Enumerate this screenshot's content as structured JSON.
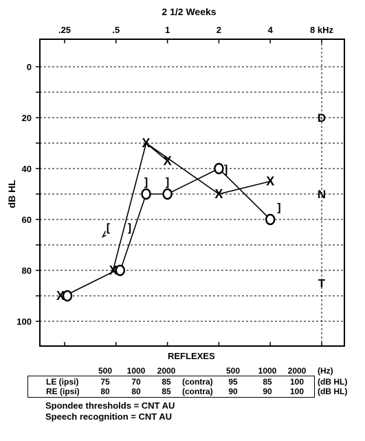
{
  "chart_data": {
    "type": "scatter",
    "title": "2 1/2 Weeks",
    "x_ticks": [
      ".25",
      ".5",
      "1",
      "2",
      "4",
      "8 kHz"
    ],
    "x_freqs_khz": [
      0.25,
      0.5,
      1,
      2,
      4,
      8
    ],
    "x_scale": "log",
    "xlabel": "",
    "ylabel": "dB HL",
    "y_ticks": [
      "0",
      "20",
      "40",
      "60",
      "80",
      "100"
    ],
    "ylim": [
      110,
      -10
    ],
    "y_inverted": true,
    "grid": "dashed horizontal every 10 dB, dashed vertical at 8 kHz",
    "series": [
      {
        "symbol": "X",
        "points": [
          [
            0.25,
            90
          ],
          [
            0.5,
            80
          ],
          [
            0.75,
            30
          ],
          [
            1,
            37
          ],
          [
            2,
            50
          ],
          [
            4,
            45
          ]
        ]
      },
      {
        "symbol": "O",
        "points": [
          [
            0.25,
            90
          ],
          [
            0.5,
            80
          ],
          [
            0.75,
            50
          ],
          [
            1,
            50
          ],
          [
            2,
            40
          ],
          [
            4,
            60
          ]
        ]
      },
      {
        "symbol": "]",
        "points": [
          [
            0.75,
            45
          ],
          [
            1,
            45
          ],
          [
            2.2,
            40
          ],
          [
            4.5,
            55
          ],
          [
            0.6,
            63
          ]
        ]
      },
      {
        "symbol": "[",
        "points": [
          [
            0.45,
            63
          ]
        ]
      }
    ],
    "lines": [
      {
        "from": "X@0.25",
        "path": [
          [
            0.25,
            90
          ],
          [
            0.5,
            80
          ],
          [
            0.5,
            80
          ],
          [
            0.75,
            30
          ],
          [
            2,
            50
          ],
          [
            4,
            45
          ]
        ]
      },
      {
        "from": "O@0.25",
        "path": [
          [
            0.25,
            90
          ],
          [
            0.5,
            80
          ],
          [
            0.75,
            50
          ],
          [
            1,
            50
          ],
          [
            2,
            40
          ],
          [
            4,
            60
          ]
        ]
      }
    ],
    "side_labels": [
      "D",
      "N",
      "T"
    ],
    "reflexes": {
      "title": "REFLEXES",
      "freq_headers": [
        "500",
        "1000",
        "2000"
      ],
      "unit_hz": "(Hz)",
      "rows": [
        {
          "label": "LE (ipsi)",
          "ipsi": [
            "75",
            "70",
            "85"
          ],
          "mode": "(contra)",
          "contra": [
            "95",
            "85",
            "100"
          ],
          "unit": "(dB HL)"
        },
        {
          "label": "RE (ipsi)",
          "ipsi": [
            "80",
            "80",
            "85"
          ],
          "mode": "(contra)",
          "contra": [
            "90",
            "90",
            "100"
          ],
          "unit": "(dB HL)"
        }
      ]
    }
  },
  "notes": {
    "spondee": "Spondee thresholds = CNT AU",
    "speech": "Speech recognition = CNT AU"
  }
}
